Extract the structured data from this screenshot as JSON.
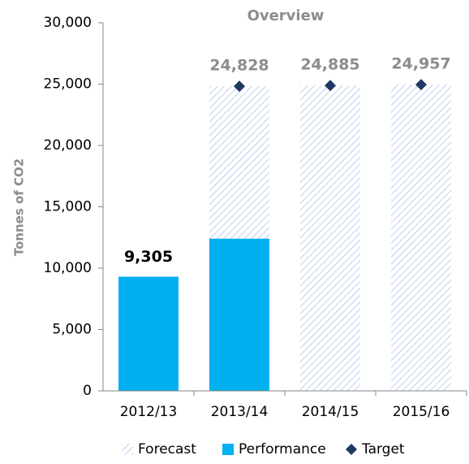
{
  "chart_data": {
    "type": "bar",
    "title": "Overview",
    "y_label": "Tonnes of CO2",
    "categories": [
      "2012/13",
      "2013/14",
      "2014/15",
      "2015/16"
    ],
    "series": [
      {
        "name": "Forecast",
        "color": "#c6d9f1",
        "values": [
          null,
          24828,
          24885,
          24957
        ]
      },
      {
        "name": "Performance",
        "color": "#00b0f0",
        "values": [
          9305,
          12400,
          null,
          null
        ],
        "value_labels": [
          "9,305",
          null,
          null,
          null
        ]
      },
      {
        "name": "Target",
        "color": "#1f3864",
        "values": [
          null,
          24828,
          24885,
          24957
        ],
        "value_labels": [
          null,
          "24,828",
          "24,885",
          "24,957"
        ]
      }
    ],
    "ylim": [
      0,
      30000
    ],
    "yticks": [
      0,
      {
        "value": 5000,
        "label": "5,000"
      },
      {
        "value": 10000,
        "label": "10,000"
      },
      {
        "value": 15000,
        "label": "15,000"
      },
      {
        "value": 20000,
        "label": "20,000"
      },
      {
        "value": 25000,
        "label": "25,000"
      },
      {
        "value": 30000,
        "label": "30,000"
      }
    ],
    "legend": "bottom"
  }
}
